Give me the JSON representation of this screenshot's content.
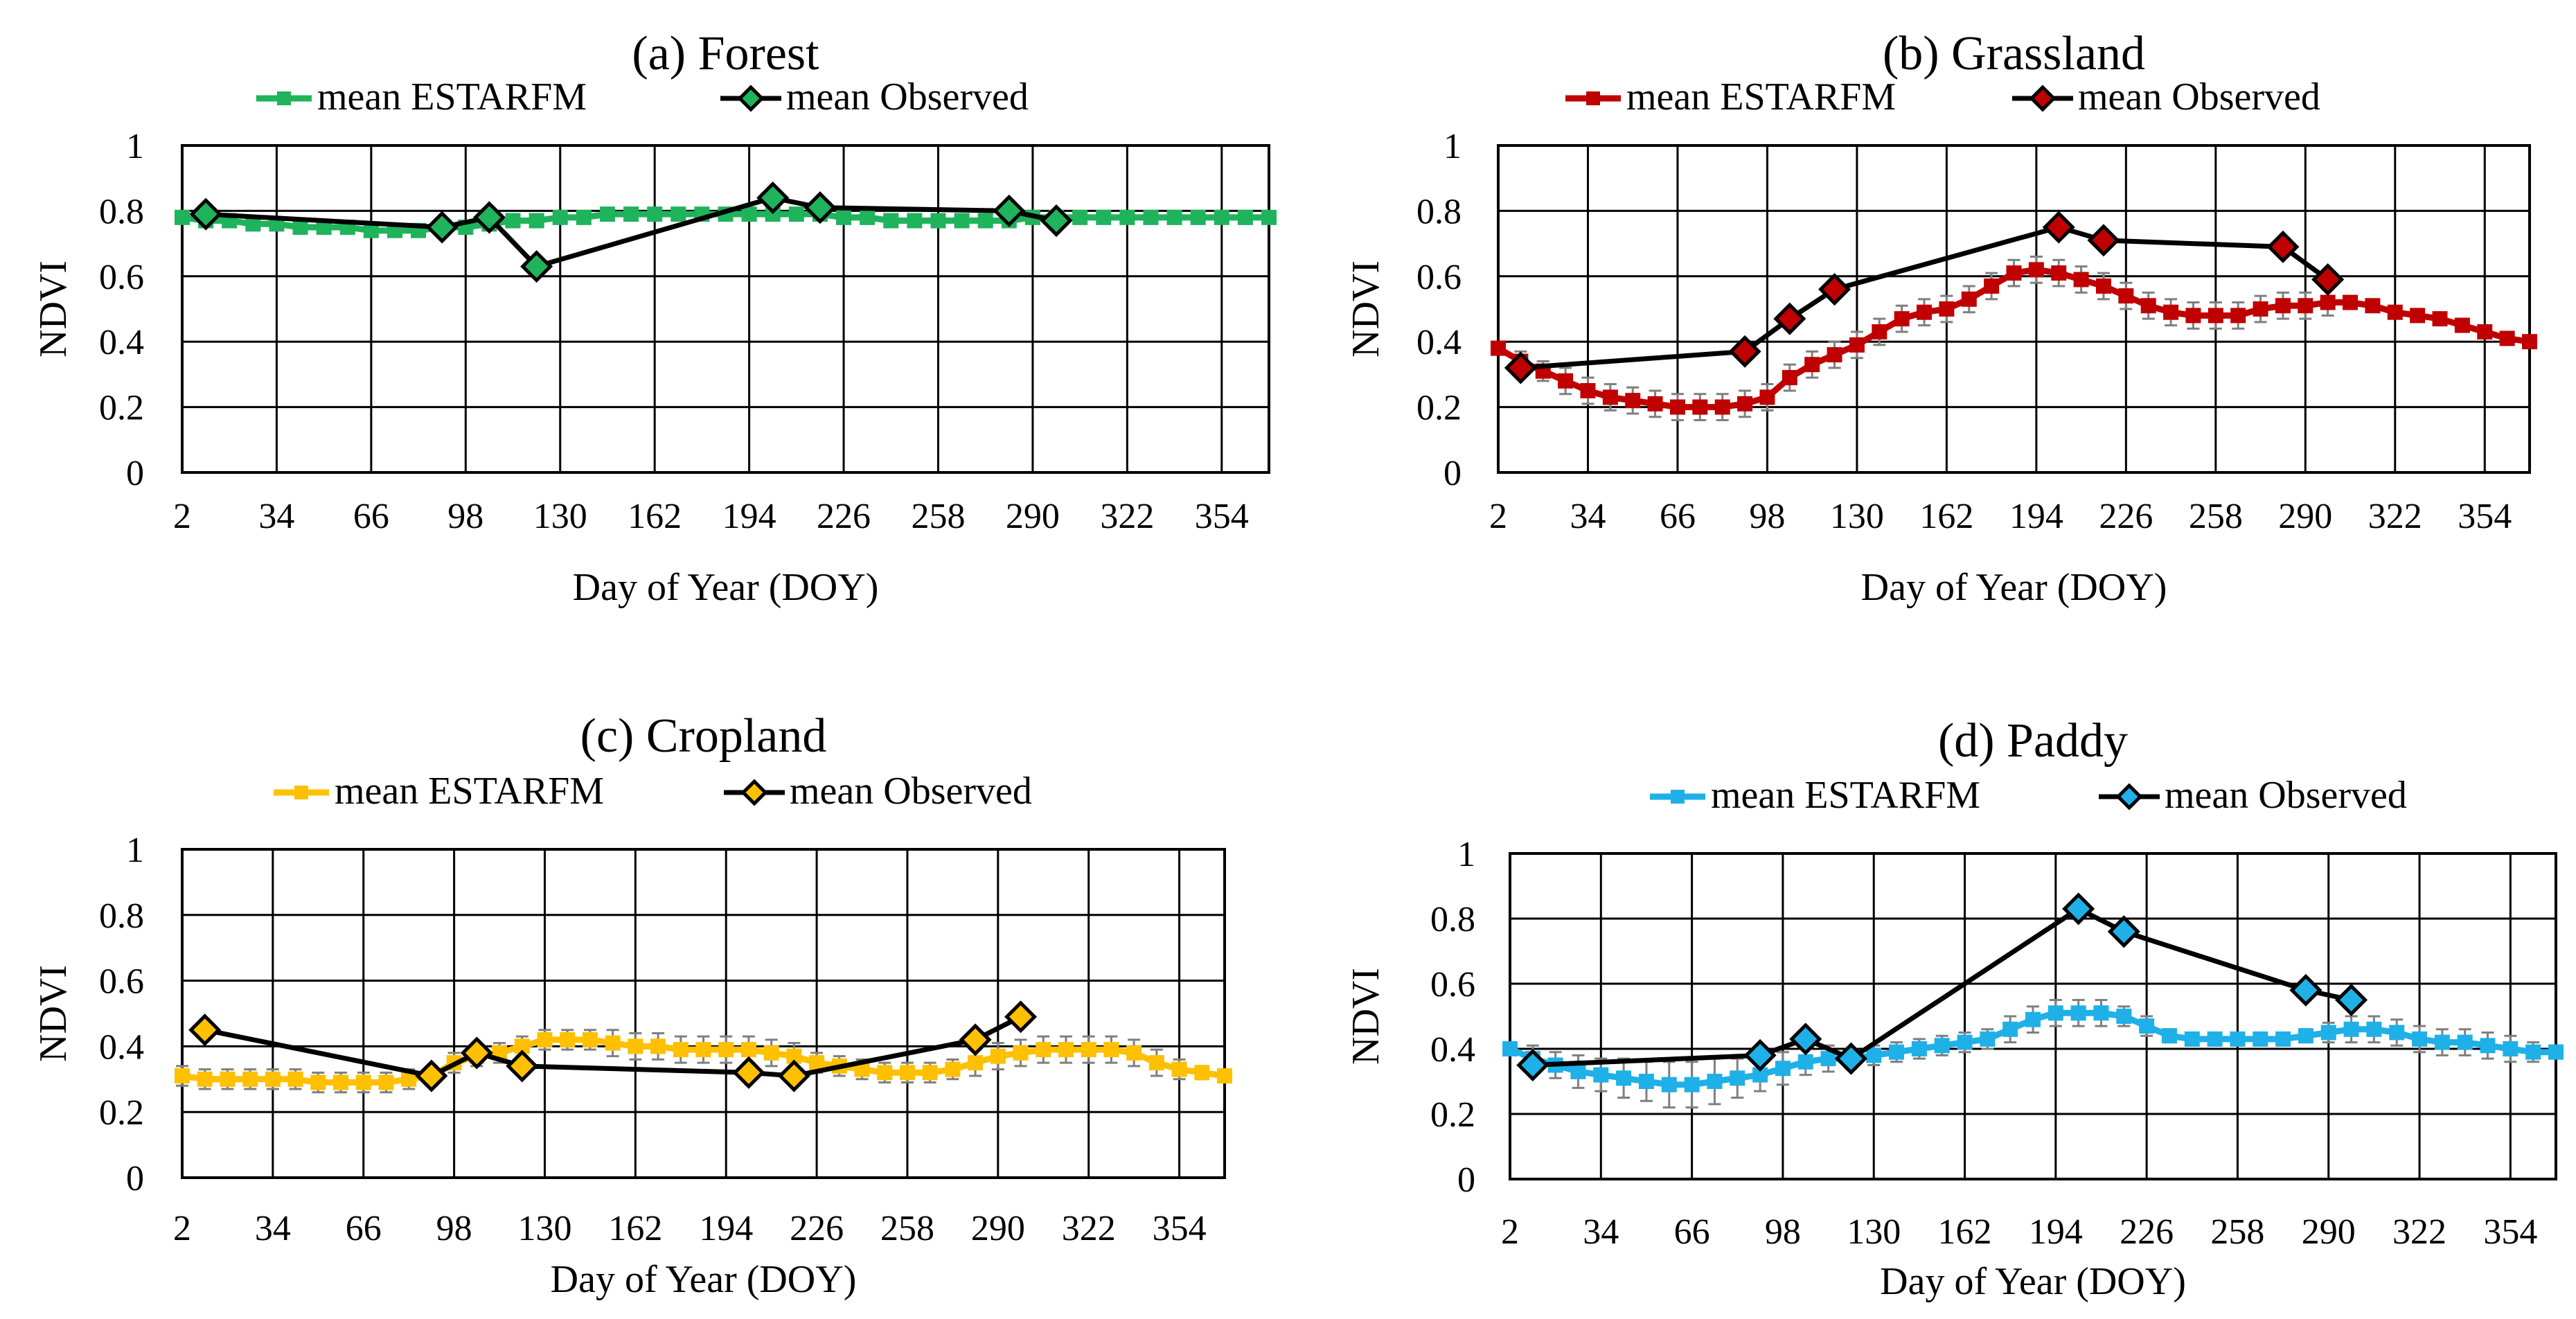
{
  "figure": {
    "description_free": true
  },
  "chart_data": [
    {
      "type": "line",
      "title": "(a) Forest",
      "xlabel": "Day of Year (DOY)",
      "ylabel": "NDVI",
      "xlim": [
        2,
        370
      ],
      "ylim": [
        0,
        1
      ],
      "xticks": [
        "2",
        "34",
        "66",
        "98",
        "130",
        "162",
        "194",
        "226",
        "258",
        "290",
        "322",
        "354"
      ],
      "yticks": [
        "0",
        "0.2",
        "0.4",
        "0.6",
        "0.8",
        "1"
      ],
      "legend": [
        "mean ESTARFM",
        "mean Observed"
      ],
      "colors": {
        "estarfm": "#1fb35b",
        "observed_fill": "#1fb35b",
        "line": "#000000"
      },
      "series": [
        {
          "name": "mean ESTARFM",
          "x": [
            2,
            10,
            18,
            26,
            34,
            42,
            50,
            58,
            66,
            74,
            82,
            90,
            98,
            106,
            114,
            122,
            130,
            138,
            146,
            154,
            162,
            170,
            178,
            186,
            194,
            202,
            210,
            218,
            226,
            234,
            242,
            250,
            258,
            266,
            274,
            282,
            290,
            298,
            306,
            314,
            322,
            330,
            338,
            346,
            354,
            362,
            370
          ],
          "y": [
            0.78,
            0.77,
            0.77,
            0.76,
            0.76,
            0.75,
            0.75,
            0.75,
            0.74,
            0.74,
            0.74,
            0.75,
            0.75,
            0.76,
            0.77,
            0.77,
            0.78,
            0.78,
            0.79,
            0.79,
            0.79,
            0.79,
            0.79,
            0.79,
            0.79,
            0.79,
            0.79,
            0.79,
            0.78,
            0.78,
            0.77,
            0.77,
            0.77,
            0.77,
            0.77,
            0.77,
            0.78,
            0.78,
            0.78,
            0.78,
            0.78,
            0.78,
            0.78,
            0.78,
            0.78,
            0.78,
            0.78
          ],
          "err": [
            0.01,
            0.01,
            0.01,
            0.01,
            0.01,
            0.01,
            0.01,
            0.01,
            0.01,
            0.01,
            0.01,
            0.01,
            0.01,
            0.01,
            0.01,
            0.01,
            0.01,
            0.01,
            0.01,
            0.01,
            0.01,
            0.01,
            0.01,
            0.01,
            0.01,
            0.01,
            0.01,
            0.01,
            0.01,
            0.01,
            0.01,
            0.01,
            0.01,
            0.01,
            0.01,
            0.01,
            0.01,
            0.01,
            0.01,
            0.01,
            0.01,
            0.01,
            0.01,
            0.01,
            0.01,
            0.01,
            0.01
          ]
        },
        {
          "name": "mean Observed",
          "x": [
            10,
            90,
            106,
            122,
            202,
            218,
            282,
            298
          ],
          "y": [
            0.79,
            0.75,
            0.78,
            0.63,
            0.84,
            0.81,
            0.8,
            0.77
          ]
        }
      ]
    },
    {
      "type": "line",
      "title": "(b) Grassland",
      "xlabel": "Day of Year (DOY)",
      "ylabel": "NDVI",
      "xlim": [
        2,
        370
      ],
      "ylim": [
        0,
        1
      ],
      "xticks": [
        "2",
        "34",
        "66",
        "98",
        "130",
        "162",
        "194",
        "226",
        "258",
        "290",
        "322",
        "354"
      ],
      "yticks": [
        "0",
        "0.2",
        "0.4",
        "0.6",
        "0.8",
        "1"
      ],
      "legend": [
        "mean ESTARFM",
        "mean Observed"
      ],
      "colors": {
        "estarfm": "#c00000",
        "observed_fill": "#c00000",
        "line": "#000000"
      },
      "series": [
        {
          "name": "mean ESTARFM",
          "x": [
            2,
            10,
            18,
            26,
            34,
            42,
            50,
            58,
            66,
            74,
            82,
            90,
            98,
            106,
            114,
            122,
            130,
            138,
            146,
            154,
            162,
            170,
            178,
            186,
            194,
            202,
            210,
            218,
            226,
            234,
            242,
            250,
            258,
            266,
            274,
            282,
            290,
            298,
            306,
            314,
            322,
            330,
            338,
            346,
            354,
            362,
            370
          ],
          "y": [
            0.38,
            0.34,
            0.31,
            0.28,
            0.25,
            0.23,
            0.22,
            0.21,
            0.2,
            0.2,
            0.2,
            0.21,
            0.23,
            0.29,
            0.33,
            0.36,
            0.39,
            0.43,
            0.47,
            0.49,
            0.5,
            0.53,
            0.57,
            0.61,
            0.62,
            0.61,
            0.59,
            0.57,
            0.54,
            0.51,
            0.49,
            0.48,
            0.48,
            0.48,
            0.5,
            0.51,
            0.51,
            0.52,
            0.52,
            0.51,
            0.49,
            0.48,
            0.47,
            0.45,
            0.43,
            0.41,
            0.4
          ],
          "err": [
            0.01,
            0.03,
            0.03,
            0.04,
            0.04,
            0.04,
            0.04,
            0.04,
            0.04,
            0.04,
            0.04,
            0.04,
            0.04,
            0.04,
            0.04,
            0.04,
            0.04,
            0.04,
            0.04,
            0.04,
            0.04,
            0.04,
            0.04,
            0.04,
            0.04,
            0.04,
            0.04,
            0.04,
            0.04,
            0.04,
            0.04,
            0.04,
            0.04,
            0.04,
            0.04,
            0.04,
            0.04,
            0.04,
            0.02,
            0.01,
            0.01,
            0.01,
            0.01,
            0.01,
            0.01,
            0.01,
            0.01
          ]
        },
        {
          "name": "mean Observed",
          "x": [
            10,
            90,
            106,
            122,
            202,
            218,
            282,
            298
          ],
          "y": [
            0.32,
            0.37,
            0.47,
            0.56,
            0.75,
            0.71,
            0.69,
            0.59
          ]
        }
      ]
    },
    {
      "type": "line",
      "title": "(c) Cropland",
      "xlabel": "Day of Year (DOY)",
      "ylabel": "NDVI",
      "xlim": [
        2,
        370
      ],
      "ylim": [
        0,
        1
      ],
      "xticks": [
        "2",
        "34",
        "66",
        "98",
        "130",
        "162",
        "194",
        "226",
        "258",
        "290",
        "322",
        "354"
      ],
      "yticks": [
        "0",
        "0.2",
        "0.4",
        "0.6",
        "0.8",
        "1"
      ],
      "legend": [
        "mean ESTARFM",
        "mean Observed"
      ],
      "colors": {
        "estarfm": "#ffc000",
        "observed_fill": "#ffc000",
        "line": "#000000"
      },
      "series": [
        {
          "name": "mean ESTARFM",
          "x": [
            2,
            10,
            18,
            26,
            34,
            42,
            50,
            58,
            66,
            74,
            82,
            90,
            98,
            106,
            114,
            122,
            130,
            138,
            146,
            154,
            162,
            170,
            178,
            186,
            194,
            202,
            210,
            218,
            226,
            234,
            242,
            250,
            258,
            266,
            274,
            282,
            290,
            298,
            306,
            314,
            322,
            330,
            338,
            346,
            354,
            362,
            370
          ],
          "y": [
            0.31,
            0.3,
            0.3,
            0.3,
            0.3,
            0.3,
            0.29,
            0.29,
            0.29,
            0.29,
            0.3,
            0.31,
            0.35,
            0.37,
            0.38,
            0.4,
            0.42,
            0.42,
            0.42,
            0.41,
            0.4,
            0.4,
            0.39,
            0.39,
            0.39,
            0.39,
            0.38,
            0.37,
            0.35,
            0.34,
            0.33,
            0.32,
            0.32,
            0.32,
            0.33,
            0.35,
            0.37,
            0.38,
            0.39,
            0.39,
            0.39,
            0.39,
            0.38,
            0.35,
            0.33,
            0.32,
            0.31
          ],
          "err": [
            0.03,
            0.03,
            0.03,
            0.03,
            0.03,
            0.03,
            0.03,
            0.03,
            0.03,
            0.03,
            0.03,
            0.03,
            0.03,
            0.03,
            0.03,
            0.03,
            0.03,
            0.03,
            0.03,
            0.04,
            0.04,
            0.04,
            0.04,
            0.04,
            0.04,
            0.04,
            0.04,
            0.04,
            0.03,
            0.03,
            0.03,
            0.03,
            0.03,
            0.03,
            0.03,
            0.04,
            0.04,
            0.04,
            0.04,
            0.04,
            0.04,
            0.04,
            0.04,
            0.04,
            0.03,
            0.02,
            0.01
          ]
        },
        {
          "name": "mean Observed",
          "x": [
            10,
            90,
            106,
            122,
            202,
            218,
            282,
            298
          ],
          "y": [
            0.45,
            0.31,
            0.38,
            0.34,
            0.32,
            0.31,
            0.42,
            0.49
          ]
        }
      ]
    },
    {
      "type": "line",
      "title": "(d) Paddy",
      "xlabel": "Day of Year (DOY)",
      "ylabel": "NDVI",
      "xlim": [
        2,
        370
      ],
      "ylim": [
        0,
        1
      ],
      "xticks": [
        "2",
        "34",
        "66",
        "98",
        "130",
        "162",
        "194",
        "226",
        "258",
        "290",
        "322",
        "354"
      ],
      "yticks": [
        "0",
        "0.2",
        "0.4",
        "0.6",
        "0.8",
        "1"
      ],
      "legend": [
        "mean ESTARFM",
        "mean Observed"
      ],
      "colors": {
        "estarfm": "#1fb0e8",
        "observed_fill": "#1fb0e8",
        "line": "#000000"
      },
      "series": [
        {
          "name": "mean ESTARFM",
          "x": [
            2,
            10,
            18,
            26,
            34,
            42,
            50,
            58,
            66,
            74,
            82,
            90,
            98,
            106,
            114,
            122,
            130,
            138,
            146,
            154,
            162,
            170,
            178,
            186,
            194,
            202,
            210,
            218,
            226,
            234,
            242,
            250,
            258,
            266,
            274,
            282,
            290,
            298,
            306,
            314,
            322,
            330,
            338,
            346,
            354,
            362,
            370
          ],
          "y": [
            0.4,
            0.37,
            0.35,
            0.33,
            0.32,
            0.31,
            0.3,
            0.29,
            0.29,
            0.3,
            0.31,
            0.32,
            0.34,
            0.36,
            0.37,
            0.37,
            0.38,
            0.39,
            0.4,
            0.41,
            0.42,
            0.43,
            0.46,
            0.49,
            0.51,
            0.51,
            0.51,
            0.5,
            0.47,
            0.44,
            0.43,
            0.43,
            0.43,
            0.43,
            0.43,
            0.44,
            0.45,
            0.46,
            0.46,
            0.45,
            0.43,
            0.42,
            0.42,
            0.41,
            0.4,
            0.39,
            0.39
          ],
          "err": [
            0.01,
            0.04,
            0.04,
            0.05,
            0.05,
            0.06,
            0.06,
            0.07,
            0.07,
            0.07,
            0.06,
            0.05,
            0.05,
            0.04,
            0.04,
            0.03,
            0.03,
            0.03,
            0.03,
            0.03,
            0.03,
            0.03,
            0.04,
            0.04,
            0.04,
            0.04,
            0.04,
            0.03,
            0.03,
            0.02,
            0.02,
            0.02,
            0.02,
            0.02,
            0.02,
            0.02,
            0.03,
            0.04,
            0.04,
            0.04,
            0.04,
            0.04,
            0.04,
            0.04,
            0.04,
            0.03,
            0.02
          ]
        },
        {
          "name": "mean Observed",
          "x": [
            10,
            90,
            106,
            122,
            202,
            218,
            282,
            298
          ],
          "y": [
            0.35,
            0.38,
            0.43,
            0.37,
            0.83,
            0.76,
            0.58,
            0.55
          ]
        }
      ]
    }
  ]
}
